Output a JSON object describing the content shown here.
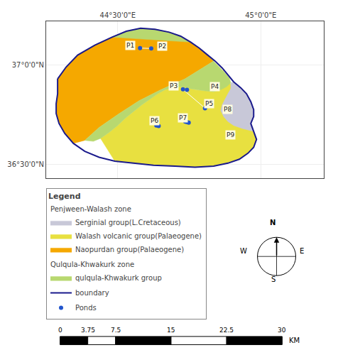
{
  "chart_data": {
    "type": "map",
    "xlim": [
      44.25,
      45.22
    ],
    "ylim": [
      36.43,
      37.22
    ],
    "xticks": [
      {
        "value": 44.5,
        "label": "44°30'0\"E"
      },
      {
        "value": 45.0,
        "label": "45°0'0\"E"
      }
    ],
    "yticks": [
      {
        "value": 36.5,
        "label": "36°30'0\"N"
      },
      {
        "value": 37.0,
        "label": "37°0'0\"N"
      }
    ],
    "grid": true,
    "legend": "bottom",
    "legend_title": "Legend",
    "series": [
      {
        "name": "Naopurdan group(Palaeogene)",
        "group": "Penjween-Walash zone",
        "type": "area",
        "color": "#f5a800",
        "x": [
          44.29,
          44.32,
          44.36,
          44.42,
          44.48,
          44.53,
          44.58,
          44.63,
          44.68,
          44.72,
          44.755,
          44.785,
          44.81,
          44.835,
          44.735,
          44.65,
          44.575,
          44.505,
          44.435,
          44.385,
          44.345,
          44.315,
          44.295,
          44.285,
          44.285,
          44.29,
          44.29
        ],
        "values": [
          36.93,
          36.99,
          37.05,
          37.1,
          37.14,
          37.17,
          37.185,
          37.18,
          37.165,
          37.145,
          37.115,
          37.085,
          37.055,
          37.02,
          36.93,
          36.875,
          36.82,
          36.755,
          36.685,
          36.62,
          36.605,
          36.655,
          36.705,
          36.755,
          36.805,
          36.855,
          36.93
        ]
      },
      {
        "name": "Walash volcanic group(Palaeogene)",
        "group": "Penjween-Walash zone",
        "type": "area",
        "color": "#e8e040",
        "x": [
          44.44,
          44.49,
          44.555,
          44.625,
          44.7,
          44.77,
          44.835,
          44.885,
          44.925,
          44.955,
          44.975,
          44.985,
          44.975,
          44.965,
          44.975,
          44.975,
          44.965,
          44.95,
          44.935,
          44.91,
          44.885,
          44.875,
          44.87,
          44.87,
          44.86,
          44.835,
          44.8,
          44.775,
          44.755,
          44.73,
          44.71,
          44.69,
          44.665,
          44.64,
          44.615,
          44.585,
          44.555,
          44.525,
          44.5,
          44.47,
          44.44
        ],
        "values": [
          36.63,
          36.515,
          36.505,
          36.495,
          36.49,
          36.485,
          36.49,
          36.505,
          36.525,
          36.555,
          36.585,
          36.625,
          36.665,
          36.705,
          36.74,
          36.775,
          36.815,
          36.855,
          36.88,
          36.895,
          36.91,
          36.93,
          36.955,
          36.98,
          36.875,
          36.865,
          36.87,
          36.875,
          36.88,
          36.89,
          36.89,
          36.885,
          36.875,
          36.855,
          36.83,
          36.8,
          36.765,
          36.73,
          36.695,
          36.66,
          36.63
        ]
      },
      {
        "name": "Serginial group(L.Cretaceous)",
        "group": "Penjween-Walash zone",
        "type": "area",
        "color": "#c8c8d8",
        "x": [
          44.895,
          44.905,
          44.93,
          44.95,
          44.965,
          44.975,
          44.975,
          44.965,
          44.975,
          44.935,
          44.905,
          44.885,
          44.87,
          44.86,
          44.865,
          44.875,
          44.885,
          44.895,
          44.895
        ],
        "values": [
          36.91,
          36.915,
          36.885,
          36.855,
          36.815,
          36.775,
          36.74,
          36.705,
          36.665,
          36.68,
          36.695,
          36.715,
          36.74,
          36.77,
          36.8,
          36.83,
          36.855,
          36.88,
          36.91
        ]
      },
      {
        "name": "qulqula-Khwakurk group",
        "group": "Qulqula-Khwakurk zone",
        "type": "area",
        "color": "#b8d870",
        "x": [
          44.48,
          44.53,
          44.58,
          44.63,
          44.68,
          44.72,
          44.755,
          44.785,
          44.81,
          44.835,
          44.855,
          44.875,
          44.89,
          44.895,
          44.88,
          44.86,
          44.835,
          44.8,
          44.775,
          44.755,
          44.73,
          44.71,
          44.69,
          44.665,
          44.64,
          44.615,
          44.585,
          44.555,
          44.525,
          44.5,
          44.47,
          44.44,
          44.415,
          44.385,
          44.435,
          44.505,
          44.575,
          44.65,
          44.735,
          44.835,
          44.81,
          44.785,
          44.755,
          44.48
        ],
        "values": [
          37.14,
          37.17,
          37.185,
          37.18,
          37.165,
          37.145,
          37.115,
          37.085,
          37.055,
          37.02,
          36.99,
          36.96,
          36.935,
          36.91,
          36.89,
          36.875,
          36.865,
          36.87,
          36.875,
          36.88,
          36.89,
          36.89,
          36.885,
          36.875,
          36.855,
          36.83,
          36.8,
          36.765,
          36.73,
          36.695,
          36.66,
          36.63,
          36.615,
          36.62,
          36.685,
          36.755,
          36.82,
          36.875,
          36.93,
          37.02,
          37.055,
          37.085,
          37.115,
          37.14
        ]
      },
      {
        "name": "boundary",
        "type": "line",
        "color": "#1a1a8c",
        "x": [
          44.29,
          44.32,
          44.36,
          44.42,
          44.48,
          44.53,
          44.58,
          44.63,
          44.68,
          44.72,
          44.755,
          44.785,
          44.81,
          44.84,
          44.865,
          44.885,
          44.905,
          44.93,
          44.95,
          44.965,
          44.975,
          44.975,
          44.965,
          44.975,
          44.985,
          44.975,
          44.955,
          44.925,
          44.885,
          44.835,
          44.77,
          44.7,
          44.625,
          44.555,
          44.49,
          44.435,
          44.385,
          44.345,
          44.315,
          44.295,
          44.285,
          44.285,
          44.29,
          44.29
        ],
        "values": [
          36.93,
          36.99,
          37.05,
          37.1,
          37.14,
          37.17,
          37.185,
          37.18,
          37.165,
          37.145,
          37.115,
          37.085,
          37.055,
          37.02,
          36.985,
          36.95,
          36.915,
          36.885,
          36.855,
          36.815,
          36.775,
          36.74,
          36.705,
          36.665,
          36.625,
          36.585,
          36.555,
          36.525,
          36.505,
          36.49,
          36.485,
          36.49,
          36.495,
          36.505,
          36.515,
          36.535,
          36.565,
          36.605,
          36.655,
          36.705,
          36.755,
          36.805,
          36.855,
          36.93
        ]
      },
      {
        "name": "Ponds",
        "type": "scatter",
        "color": "#2255cc",
        "x": [
          44.578,
          44.617,
          44.728,
          44.742,
          44.805,
          44.736,
          44.742,
          44.748,
          44.635,
          44.643
        ],
        "values": [
          37.085,
          37.083,
          36.877,
          36.875,
          36.782,
          36.715,
          36.712,
          36.709,
          36.695,
          36.692
        ]
      }
    ],
    "connectors": [
      {
        "x": [
          44.578,
          44.617
        ],
        "y": [
          37.085,
          37.083
        ]
      },
      {
        "x": [
          44.728,
          44.805
        ],
        "y": [
          36.877,
          36.782
        ]
      }
    ],
    "annotations": [
      {
        "text": "P1",
        "x": 44.545,
        "y": 37.1
      },
      {
        "text": "P2",
        "x": 44.655,
        "y": 37.095
      },
      {
        "text": "P3",
        "x": 44.695,
        "y": 36.895
      },
      {
        "text": "P4",
        "x": 44.84,
        "y": 36.89
      },
      {
        "text": "P5",
        "x": 44.82,
        "y": 36.805
      },
      {
        "text": "P6",
        "x": 44.628,
        "y": 36.718
      },
      {
        "text": "P7",
        "x": 44.728,
        "y": 36.732
      },
      {
        "text": "P8",
        "x": 44.885,
        "y": 36.778
      },
      {
        "text": "P9",
        "x": 44.895,
        "y": 36.648
      }
    ],
    "compass": [
      "N",
      "S",
      "E",
      "W"
    ],
    "scale_bar": {
      "ticks": [
        0,
        3.75,
        7.5,
        15,
        22.5,
        30
      ],
      "unit": "KM"
    }
  }
}
